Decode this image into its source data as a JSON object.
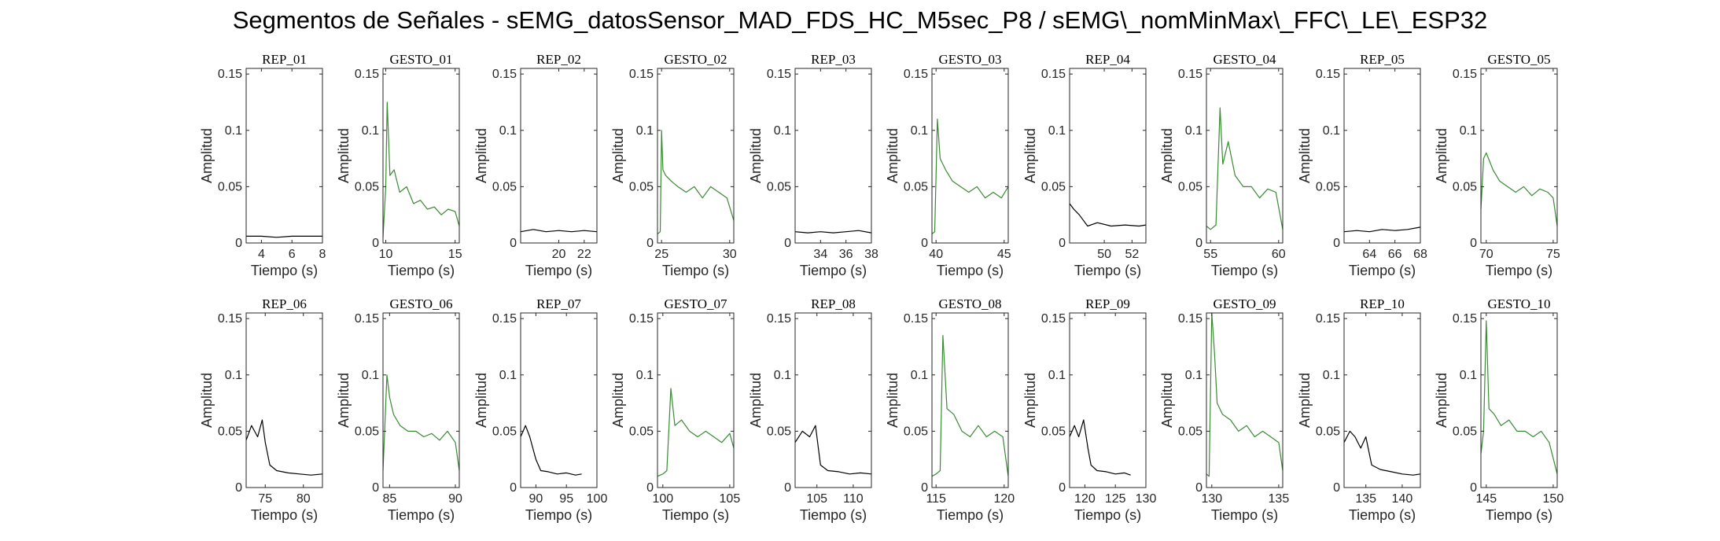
{
  "title": "Segmentos de Señales - sEMG_datosSensor_MAD_FDS_HC_M5sec_P8 / sEMG\\_nomMinMax\\_FFC\\_LE\\_ESP32",
  "colors": {
    "rep": "#000000",
    "gesto": "#3a8a34",
    "axes": "#262626"
  },
  "chart_data": [
    {
      "type": "line",
      "title": "REP_01",
      "xlabel": "Tiempo (s)",
      "ylabel": "Amplitud",
      "xlim": [
        3,
        8
      ],
      "ylim": [
        0,
        0.155
      ],
      "xticks": [
        4,
        6,
        8
      ],
      "yticks": [
        0,
        0.05,
        0.1,
        0.15
      ],
      "color": "#000000",
      "x": [
        3.0,
        4.0,
        5.0,
        6.0,
        7.0,
        8.0
      ],
      "y": [
        0.006,
        0.006,
        0.005,
        0.006,
        0.006,
        0.006
      ]
    },
    {
      "type": "line",
      "title": "GESTO_01",
      "xlabel": "Tiempo (s)",
      "ylabel": "Amplitud",
      "xlim": [
        9.8,
        15.3
      ],
      "ylim": [
        0,
        0.155
      ],
      "xticks": [
        10,
        15
      ],
      "yticks": [
        0,
        0.05,
        0.1,
        0.15
      ],
      "color": "#3a8a34",
      "x": [
        9.8,
        10.0,
        10.1,
        10.3,
        10.6,
        11.0,
        11.5,
        12.0,
        12.5,
        13.0,
        13.5,
        14.0,
        14.5,
        15.0,
        15.3
      ],
      "y": [
        0.005,
        0.05,
        0.125,
        0.06,
        0.065,
        0.045,
        0.05,
        0.035,
        0.038,
        0.03,
        0.032,
        0.025,
        0.03,
        0.028,
        0.015
      ]
    },
    {
      "type": "line",
      "title": "REP_02",
      "xlabel": "Tiempo (s)",
      "ylabel": "Amplitud",
      "xlim": [
        17,
        23
      ],
      "ylim": [
        0,
        0.155
      ],
      "xticks": [
        20,
        22
      ],
      "yticks": [
        0,
        0.05,
        0.1,
        0.15
      ],
      "color": "#000000",
      "x": [
        17.0,
        18.0,
        19.0,
        20.0,
        21.0,
        22.0,
        23.0
      ],
      "y": [
        0.01,
        0.012,
        0.01,
        0.011,
        0.01,
        0.011,
        0.01
      ]
    },
    {
      "type": "line",
      "title": "GESTO_02",
      "xlabel": "Tiempo (s)",
      "ylabel": "Amplitud",
      "xlim": [
        24.7,
        30.3
      ],
      "ylim": [
        0,
        0.155
      ],
      "xticks": [
        25,
        30
      ],
      "yticks": [
        0,
        0.05,
        0.1,
        0.15
      ],
      "color": "#3a8a34",
      "x": [
        24.7,
        24.9,
        25.0,
        25.1,
        25.3,
        25.7,
        26.2,
        26.8,
        27.4,
        28.0,
        28.6,
        29.2,
        29.8,
        30.3
      ],
      "y": [
        0.008,
        0.01,
        0.1,
        0.065,
        0.06,
        0.055,
        0.05,
        0.045,
        0.05,
        0.04,
        0.05,
        0.045,
        0.04,
        0.02
      ]
    },
    {
      "type": "line",
      "title": "REP_03",
      "xlabel": "Tiempo (s)",
      "ylabel": "Amplitud",
      "xlim": [
        32,
        38
      ],
      "ylim": [
        0,
        0.155
      ],
      "xticks": [
        34,
        36,
        38
      ],
      "yticks": [
        0,
        0.05,
        0.1,
        0.15
      ],
      "color": "#000000",
      "x": [
        32.0,
        33.0,
        34.0,
        35.0,
        36.0,
        37.0,
        38.0
      ],
      "y": [
        0.01,
        0.009,
        0.01,
        0.009,
        0.01,
        0.011,
        0.009
      ]
    },
    {
      "type": "line",
      "title": "GESTO_03",
      "xlabel": "Tiempo (s)",
      "ylabel": "Amplitud",
      "xlim": [
        39.7,
        45.3
      ],
      "ylim": [
        0,
        0.155
      ],
      "xticks": [
        40,
        45
      ],
      "yticks": [
        0,
        0.05,
        0.1,
        0.15
      ],
      "color": "#3a8a34",
      "x": [
        39.7,
        39.9,
        40.1,
        40.3,
        40.7,
        41.2,
        41.8,
        42.4,
        43.0,
        43.6,
        44.2,
        44.8,
        45.3
      ],
      "y": [
        0.008,
        0.01,
        0.11,
        0.075,
        0.065,
        0.055,
        0.05,
        0.045,
        0.05,
        0.04,
        0.045,
        0.04,
        0.05
      ]
    },
    {
      "type": "line",
      "title": "REP_04",
      "xlabel": "Tiempo (s)",
      "ylabel": "Amplitud",
      "xlim": [
        47.5,
        53
      ],
      "ylim": [
        0,
        0.155
      ],
      "xticks": [
        50,
        52
      ],
      "yticks": [
        0,
        0.05,
        0.1,
        0.15
      ],
      "color": "#000000",
      "x": [
        47.5,
        47.8,
        48.2,
        48.8,
        49.5,
        50.5,
        51.5,
        52.5,
        53.0
      ],
      "y": [
        0.035,
        0.03,
        0.025,
        0.015,
        0.018,
        0.015,
        0.016,
        0.015,
        0.016
      ]
    },
    {
      "type": "line",
      "title": "GESTO_04",
      "xlabel": "Tiempo (s)",
      "ylabel": "Amplitud",
      "xlim": [
        54.7,
        60.3
      ],
      "ylim": [
        0,
        0.155
      ],
      "xticks": [
        55,
        60
      ],
      "yticks": [
        0,
        0.05,
        0.1,
        0.15
      ],
      "color": "#3a8a34",
      "x": [
        54.7,
        55.0,
        55.4,
        55.7,
        55.9,
        56.3,
        56.8,
        57.4,
        58.0,
        58.6,
        59.2,
        59.8,
        60.3
      ],
      "y": [
        0.015,
        0.012,
        0.016,
        0.12,
        0.07,
        0.09,
        0.06,
        0.05,
        0.05,
        0.04,
        0.048,
        0.045,
        0.012
      ]
    },
    {
      "type": "line",
      "title": "REP_05",
      "xlabel": "Tiempo (s)",
      "ylabel": "Amplitud",
      "xlim": [
        62,
        68
      ],
      "ylim": [
        0,
        0.155
      ],
      "xticks": [
        64,
        66,
        68
      ],
      "yticks": [
        0,
        0.05,
        0.1,
        0.15
      ],
      "color": "#000000",
      "x": [
        62.0,
        63.0,
        64.0,
        65.0,
        66.0,
        67.0,
        68.0
      ],
      "y": [
        0.01,
        0.011,
        0.01,
        0.012,
        0.011,
        0.012,
        0.014
      ]
    },
    {
      "type": "line",
      "title": "GESTO_05",
      "xlabel": "Tiempo (s)",
      "ylabel": "Amplitud",
      "xlim": [
        69.6,
        75.3
      ],
      "ylim": [
        0,
        0.155
      ],
      "xticks": [
        70,
        75
      ],
      "yticks": [
        0,
        0.05,
        0.1,
        0.15
      ],
      "color": "#3a8a34",
      "x": [
        69.6,
        69.8,
        70.0,
        70.5,
        71.0,
        71.6,
        72.2,
        72.8,
        73.4,
        74.0,
        74.6,
        75.0,
        75.3
      ],
      "y": [
        0.03,
        0.075,
        0.08,
        0.065,
        0.055,
        0.05,
        0.045,
        0.05,
        0.042,
        0.048,
        0.045,
        0.04,
        0.015
      ]
    },
    {
      "type": "line",
      "title": "REP_06",
      "xlabel": "Tiempo (s)",
      "ylabel": "Amplitud",
      "xlim": [
        72.5,
        82.5
      ],
      "ylim": [
        0,
        0.155
      ],
      "xticks": [
        75,
        80
      ],
      "yticks": [
        0,
        0.05,
        0.1,
        0.15
      ],
      "color": "#000000",
      "x": [
        72.5,
        73.2,
        74.0,
        74.6,
        75.0,
        75.6,
        76.5,
        78.0,
        79.5,
        81.0,
        82.5
      ],
      "y": [
        0.042,
        0.055,
        0.045,
        0.06,
        0.04,
        0.02,
        0.015,
        0.013,
        0.012,
        0.011,
        0.012
      ]
    },
    {
      "type": "line",
      "title": "GESTO_06",
      "xlabel": "Tiempo (s)",
      "ylabel": "Amplitud",
      "xlim": [
        84.5,
        90.3
      ],
      "ylim": [
        0,
        0.155
      ],
      "xticks": [
        85,
        90
      ],
      "yticks": [
        0,
        0.05,
        0.1,
        0.15
      ],
      "color": "#3a8a34",
      "x": [
        84.5,
        84.8,
        85.0,
        85.3,
        85.8,
        86.4,
        87.0,
        87.6,
        88.2,
        88.8,
        89.4,
        90.0,
        90.3
      ],
      "y": [
        0.015,
        0.1,
        0.08,
        0.065,
        0.055,
        0.05,
        0.05,
        0.045,
        0.048,
        0.042,
        0.05,
        0.04,
        0.015
      ]
    },
    {
      "type": "line",
      "title": "REP_07",
      "xlabel": "Tiempo (s)",
      "ylabel": "Amplitud",
      "xlim": [
        87.5,
        100
      ],
      "ylim": [
        0,
        0.155
      ],
      "xticks": [
        90,
        95,
        100
      ],
      "yticks": [
        0,
        0.05,
        0.1,
        0.15
      ],
      "color": "#000000",
      "x": [
        87.5,
        88.3,
        89.0,
        89.5,
        90.0,
        90.8,
        92.0,
        93.5,
        95.0,
        96.5,
        97.5
      ],
      "y": [
        0.045,
        0.055,
        0.045,
        0.035,
        0.025,
        0.015,
        0.014,
        0.012,
        0.013,
        0.011,
        0.012
      ]
    },
    {
      "type": "line",
      "title": "GESTO_07",
      "xlabel": "Tiempo (s)",
      "ylabel": "Amplitud",
      "xlim": [
        99.6,
        105.3
      ],
      "ylim": [
        0,
        0.155
      ],
      "xticks": [
        100,
        105
      ],
      "yticks": [
        0,
        0.05,
        0.1,
        0.15
      ],
      "color": "#3a8a34",
      "x": [
        99.6,
        100.0,
        100.3,
        100.6,
        100.9,
        101.4,
        102.0,
        102.6,
        103.2,
        103.8,
        104.4,
        105.0,
        105.3
      ],
      "y": [
        0.01,
        0.012,
        0.015,
        0.088,
        0.055,
        0.06,
        0.05,
        0.045,
        0.05,
        0.045,
        0.04,
        0.048,
        0.035
      ]
    },
    {
      "type": "line",
      "title": "REP_08",
      "xlabel": "Tiempo (s)",
      "ylabel": "Amplitud",
      "xlim": [
        102,
        112.5
      ],
      "ylim": [
        0,
        0.155
      ],
      "xticks": [
        105,
        110
      ],
      "yticks": [
        0,
        0.05,
        0.1,
        0.15
      ],
      "color": "#000000",
      "x": [
        102.0,
        103.0,
        104.0,
        104.8,
        105.5,
        106.5,
        108.0,
        109.5,
        111.0,
        112.5
      ],
      "y": [
        0.04,
        0.05,
        0.045,
        0.055,
        0.02,
        0.015,
        0.014,
        0.012,
        0.013,
        0.012
      ]
    },
    {
      "type": "line",
      "title": "GESTO_08",
      "xlabel": "Tiempo (s)",
      "ylabel": "Amplitud",
      "xlim": [
        114.7,
        120.3
      ],
      "ylim": [
        0,
        0.155
      ],
      "xticks": [
        115,
        120
      ],
      "yticks": [
        0,
        0.05,
        0.1,
        0.15
      ],
      "color": "#3a8a34",
      "x": [
        114.7,
        115.0,
        115.3,
        115.5,
        115.8,
        116.3,
        116.9,
        117.5,
        118.1,
        118.7,
        119.3,
        119.9,
        120.3
      ],
      "y": [
        0.01,
        0.012,
        0.015,
        0.135,
        0.07,
        0.065,
        0.05,
        0.045,
        0.055,
        0.045,
        0.05,
        0.045,
        0.01
      ]
    },
    {
      "type": "line",
      "title": "REP_09",
      "xlabel": "Tiempo (s)",
      "ylabel": "Amplitud",
      "xlim": [
        117.5,
        130
      ],
      "ylim": [
        0,
        0.155
      ],
      "xticks": [
        120,
        125,
        130
      ],
      "yticks": [
        0,
        0.05,
        0.1,
        0.15
      ],
      "color": "#000000",
      "x": [
        117.5,
        118.3,
        119.0,
        119.8,
        120.5,
        121.0,
        122.0,
        123.5,
        125.0,
        126.5,
        127.5
      ],
      "y": [
        0.045,
        0.055,
        0.045,
        0.06,
        0.035,
        0.02,
        0.015,
        0.014,
        0.012,
        0.013,
        0.011
      ]
    },
    {
      "type": "line",
      "title": "GESTO_09",
      "xlabel": "Tiempo (s)",
      "ylabel": "Amplitud",
      "xlim": [
        129.6,
        135.3
      ],
      "ylim": [
        0,
        0.155
      ],
      "xticks": [
        130,
        135
      ],
      "yticks": [
        0,
        0.05,
        0.1,
        0.15
      ],
      "color": "#3a8a34",
      "x": [
        129.6,
        129.8,
        130.0,
        130.2,
        130.4,
        130.8,
        131.4,
        132.0,
        132.6,
        133.2,
        133.8,
        134.4,
        135.0,
        135.3
      ],
      "y": [
        0.012,
        0.01,
        0.155,
        0.12,
        0.075,
        0.065,
        0.06,
        0.05,
        0.055,
        0.045,
        0.05,
        0.045,
        0.04,
        0.015
      ]
    },
    {
      "type": "line",
      "title": "REP_10",
      "xlabel": "Tiempo (s)",
      "ylabel": "Amplitud",
      "xlim": [
        132,
        142.5
      ],
      "ylim": [
        0,
        0.155
      ],
      "xticks": [
        135,
        140
      ],
      "yticks": [
        0,
        0.05,
        0.1,
        0.15
      ],
      "color": "#000000",
      "x": [
        132.0,
        132.8,
        133.5,
        134.3,
        135.0,
        135.8,
        137.0,
        138.5,
        140.0,
        141.5,
        142.5
      ],
      "y": [
        0.04,
        0.05,
        0.045,
        0.035,
        0.045,
        0.02,
        0.016,
        0.014,
        0.012,
        0.011,
        0.012
      ]
    },
    {
      "type": "line",
      "title": "GESTO_10",
      "xlabel": "Tiempo (s)",
      "ylabel": "Amplitud",
      "xlim": [
        144.6,
        150.3
      ],
      "ylim": [
        0,
        0.155
      ],
      "xticks": [
        145,
        150
      ],
      "yticks": [
        0,
        0.05,
        0.1,
        0.15
      ],
      "color": "#3a8a34",
      "x": [
        144.6,
        144.8,
        145.0,
        145.2,
        145.6,
        146.1,
        146.7,
        147.3,
        147.9,
        148.5,
        149.1,
        149.7,
        150.3
      ],
      "y": [
        0.03,
        0.05,
        0.148,
        0.07,
        0.065,
        0.055,
        0.06,
        0.05,
        0.05,
        0.045,
        0.05,
        0.04,
        0.012
      ]
    }
  ]
}
